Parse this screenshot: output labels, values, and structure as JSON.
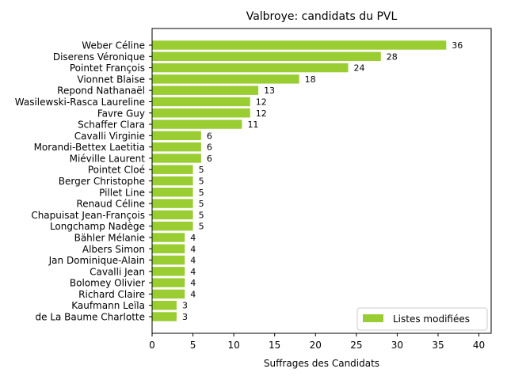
{
  "chart_data": {
    "type": "bar",
    "orientation": "horizontal",
    "title": "Valbroye: candidats du PVL",
    "xlabel": "Suffrages des Candidats",
    "ylabel": "",
    "xlim": [
      0,
      41.5
    ],
    "xticks": [
      0,
      5,
      10,
      15,
      20,
      25,
      30,
      35,
      40
    ],
    "grid": false,
    "legend_position": "lower-right",
    "categories": [
      "Weber Céline",
      "Diserens Véronique",
      "Pointet François",
      "Vionnet Blaise",
      "Repond Nathanaël",
      "Wasilewski-Rasca Laureline",
      "Favre Guy",
      "Schaffer Clara",
      "Cavalli Virginie",
      "Morandi-Bettex Laetitia",
      "Miéville Laurent",
      "Pointet Cloé",
      "Berger Christophe",
      "Pillet Line",
      "Renaud Céline",
      "Chapuisat Jean-François",
      "Longchamp Nadège",
      "Bähler Mélanie",
      "Albers Simon",
      "Jan Dominique-Alain",
      "Cavalli Jean",
      "Bolomey Olivier",
      "Richard Claire",
      "Kaufmann Leïla",
      "de La Baume Charlotte"
    ],
    "series": [
      {
        "name": "Listes modifiées",
        "color": "#9acd32",
        "values": [
          36,
          28,
          24,
          18,
          13,
          12,
          12,
          11,
          6,
          6,
          6,
          5,
          5,
          5,
          5,
          5,
          5,
          4,
          4,
          4,
          4,
          4,
          4,
          3,
          3
        ]
      }
    ]
  }
}
